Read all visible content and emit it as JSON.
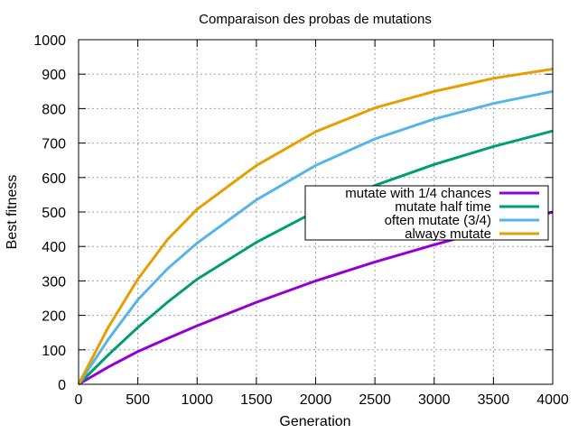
{
  "chart_data": {
    "type": "line",
    "title": "Comparaison des probas de mutations",
    "xlabel": "Generation",
    "ylabel": "Best fitness",
    "xlim": [
      0,
      4000
    ],
    "ylim": [
      0,
      1000
    ],
    "xticks": [
      0,
      500,
      1000,
      1500,
      2000,
      2500,
      3000,
      3500,
      4000
    ],
    "yticks": [
      0,
      100,
      200,
      300,
      400,
      500,
      600,
      700,
      800,
      900,
      1000
    ],
    "grid": true,
    "legend_position": "right",
    "series": [
      {
        "name": "mutate with 1/4 chances",
        "color": "#9400d3",
        "x": [
          0,
          250,
          500,
          750,
          1000,
          1500,
          2000,
          2500,
          3000,
          3500,
          4000
        ],
        "y": [
          0,
          50,
          95,
          133,
          170,
          238,
          300,
          355,
          405,
          452,
          500
        ]
      },
      {
        "name": "mutate half time",
        "color": "#009e73",
        "x": [
          0,
          250,
          500,
          750,
          1000,
          1500,
          2000,
          2500,
          3000,
          3500,
          4000
        ],
        "y": [
          0,
          85,
          165,
          238,
          305,
          412,
          502,
          577,
          638,
          690,
          735
        ]
      },
      {
        "name": "often mutate (3/4)",
        "color": "#56b4e9",
        "x": [
          0,
          250,
          500,
          750,
          1000,
          1500,
          2000,
          2500,
          3000,
          3500,
          4000
        ],
        "y": [
          0,
          130,
          245,
          335,
          410,
          535,
          635,
          712,
          770,
          815,
          850
        ]
      },
      {
        "name": "always mutate",
        "color": "#e69f00",
        "x": [
          0,
          250,
          500,
          750,
          1000,
          1500,
          2000,
          2500,
          3000,
          3500,
          4000
        ],
        "y": [
          0,
          165,
          305,
          420,
          508,
          635,
          733,
          802,
          850,
          888,
          915
        ]
      }
    ]
  }
}
